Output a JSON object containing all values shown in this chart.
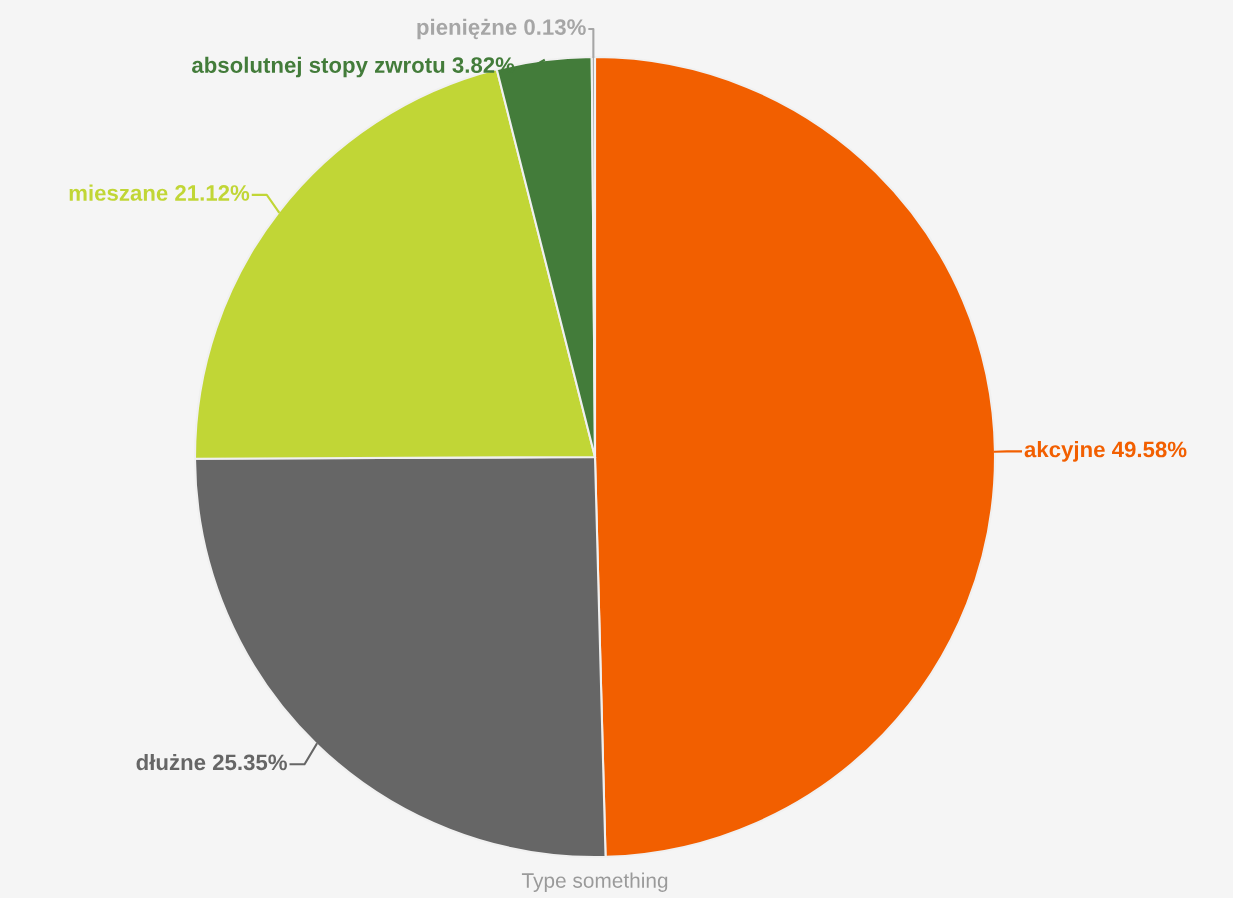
{
  "chart_data": {
    "type": "pie",
    "categories": [
      "akcyjne",
      "dłużne",
      "mieszane",
      "absolutnej stopy zwrotu",
      "pieniężne"
    ],
    "values": [
      49.58,
      25.35,
      21.12,
      3.82,
      0.13
    ],
    "value_labels": [
      "49.58%",
      "25.35%",
      "21.12%",
      "3.82%",
      "0.13%"
    ],
    "colors": [
      "#f25f00",
      "#666666",
      "#c1d636",
      "#437c3a",
      "#a6a6a6"
    ],
    "annotations": [
      "Type something"
    ]
  }
}
